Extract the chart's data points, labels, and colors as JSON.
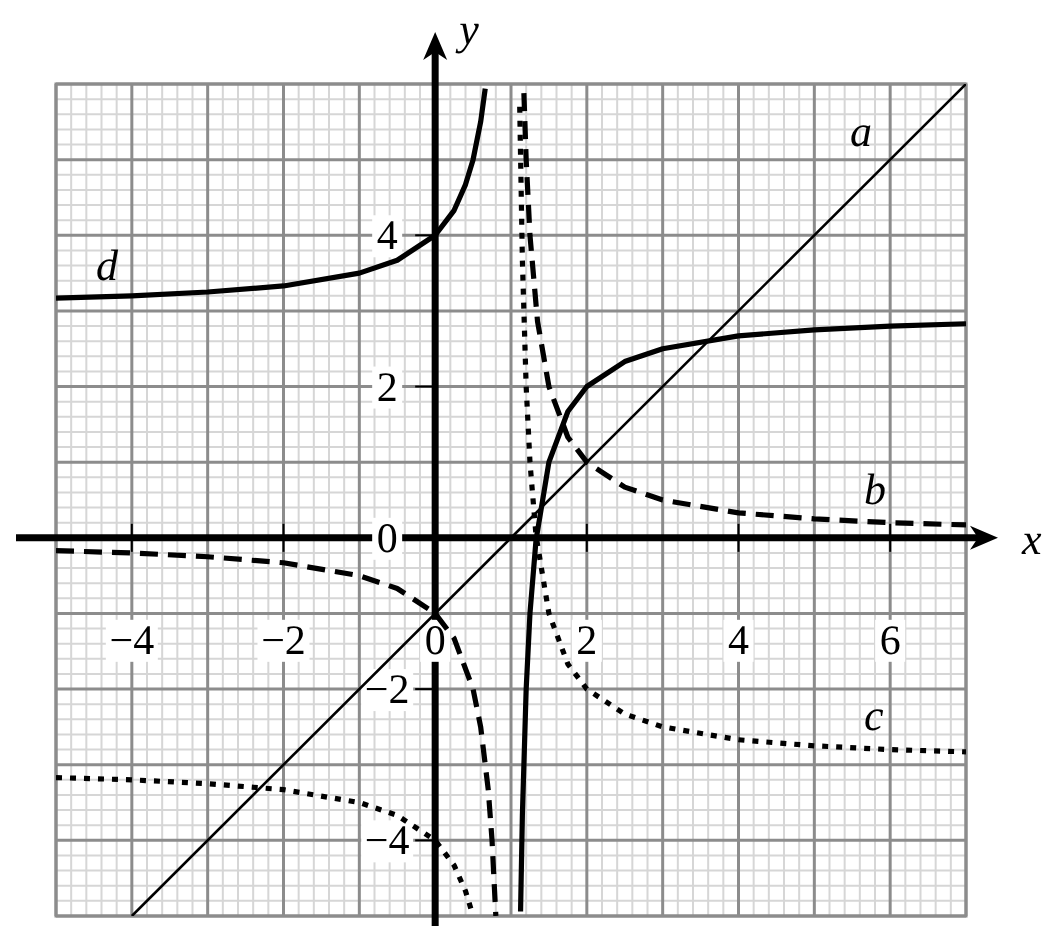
{
  "chart_data": {
    "type": "line",
    "xlabel": "x",
    "ylabel": "y",
    "xlim": [
      -5,
      7
    ],
    "ylim": [
      -5,
      6
    ],
    "xticks": [
      -4,
      -2,
      0,
      2,
      4,
      6
    ],
    "yticks": [
      -4,
      -2,
      0,
      2,
      4
    ],
    "grid": true,
    "marker": "none",
    "series": [
      {
        "name": "a",
        "color": "#000000",
        "line_style": "solid",
        "x": [
          -4,
          7
        ],
        "values": [
          -5,
          6
        ]
      },
      {
        "name": "b",
        "color": "#000000",
        "line_style": "dashed",
        "x": [
          -5,
          -4,
          -3,
          -2,
          -1,
          -0.5,
          0,
          0.25,
          0.5,
          0.6,
          0.7,
          0.75,
          0.8,
          1,
          1.17,
          1.2,
          1.25,
          1.35,
          1.5,
          1.75,
          2,
          2.5,
          3,
          4,
          5,
          6,
          7
        ],
        "values": [
          -0.17,
          -0.2,
          -0.25,
          -0.33,
          -0.5,
          -0.67,
          -1,
          -1.33,
          -2,
          -2.5,
          -3.33,
          -4,
          -5,
          null,
          5.88,
          5,
          4,
          2.86,
          2,
          1.33,
          1,
          0.67,
          0.5,
          0.33,
          0.25,
          0.2,
          0.17
        ]
      },
      {
        "name": "c",
        "color": "#000000",
        "line_style": "dotted",
        "x": [
          -5,
          -4,
          -3,
          -2,
          -1,
          -0.5,
          0,
          0.25,
          0.4,
          0.5,
          1,
          1.115,
          1.15,
          1.2,
          1.25,
          1.33,
          1.5,
          1.75,
          2,
          2.5,
          3,
          4,
          5,
          6,
          7
        ],
        "values": [
          -3.17,
          -3.2,
          -3.25,
          -3.33,
          -3.5,
          -3.67,
          -4,
          -4.33,
          -4.67,
          -5,
          null,
          5.7,
          3.67,
          2,
          1,
          0.03,
          -1,
          -1.67,
          -2,
          -2.33,
          -2.5,
          -2.67,
          -2.75,
          -2.8,
          -2.83
        ]
      },
      {
        "name": "d",
        "color": "#000000",
        "line_style": "solid",
        "x": [
          -5,
          -4,
          -3,
          -2,
          -1,
          -0.5,
          0,
          0.25,
          0.4,
          0.5,
          0.6,
          0.66,
          1,
          1.126,
          1.15,
          1.2,
          1.25,
          1.33,
          1.5,
          1.75,
          2,
          2.5,
          3,
          4,
          5,
          6,
          7
        ],
        "values": [
          3.17,
          3.2,
          3.25,
          3.33,
          3.5,
          3.67,
          4,
          4.33,
          4.67,
          5,
          5.5,
          5.94,
          null,
          -4.94,
          -3.67,
          -2,
          -1,
          -0.03,
          1,
          1.67,
          2,
          2.33,
          2.5,
          2.67,
          2.75,
          2.8,
          2.83
        ]
      }
    ]
  }
}
